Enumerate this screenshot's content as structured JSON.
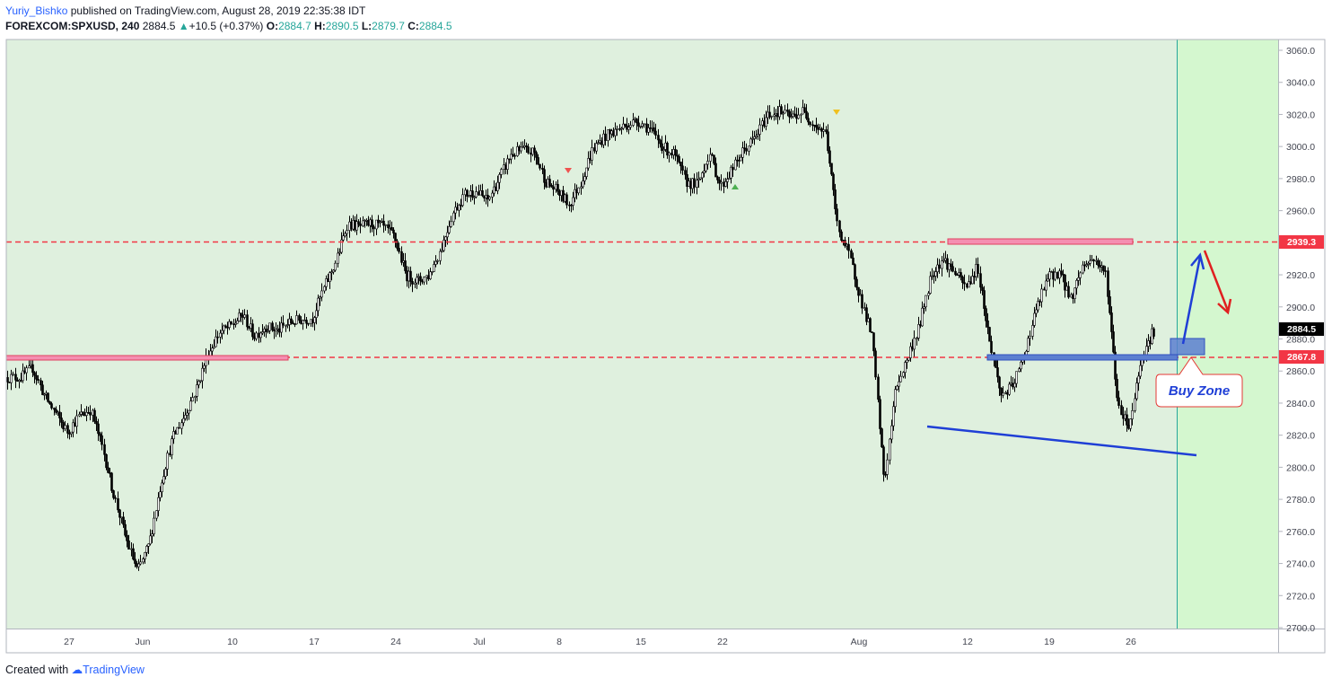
{
  "header": {
    "author": "Yuriy_Bishko",
    "published_text": "published on TradingView.com, August 28, 2019 22:35:38 IDT",
    "symbol": "FOREXCOM:SPXUSD, 240",
    "last": "2884.5",
    "change": "+10.5 (+0.37%)",
    "o_label": "O:",
    "o": "2884.7",
    "h_label": "H:",
    "h": "2890.5",
    "l_label": "L:",
    "l": "2879.7",
    "c_label": "C:",
    "c": "2884.5"
  },
  "footer": {
    "created_with": "Created with",
    "brand": "TradingView"
  },
  "colors": {
    "bg_green": "#dff0de",
    "future_green": "#d4f7cf",
    "resistance_line": "#f23645",
    "zone_red": "#f48fb1",
    "zone_blue": "#5c7fd0",
    "support_line": "#1f3fd6",
    "arrow_up": "#1f3fd6",
    "arrow_down": "#e02020",
    "buy_text": "#1f3fd6",
    "callout_border": "#e53935"
  },
  "chart_data": {
    "type": "candlestick",
    "y_axis": {
      "min": 2700,
      "max": 3060,
      "ticks": [
        "3060.0",
        "3040.0",
        "3020.0",
        "3000.0",
        "2980.0",
        "2960.0",
        "2940.0",
        "2920.0",
        "2900.0",
        "2880.0",
        "2860.0",
        "2840.0",
        "2820.0",
        "2800.0",
        "2780.0",
        "2760.0",
        "2740.0",
        "2720.0",
        "2700.0"
      ],
      "tick_values": [
        3060,
        3040,
        3020,
        3000,
        2980,
        2960,
        2940,
        2920,
        2900,
        2880,
        2860,
        2840,
        2820,
        2800,
        2780,
        2760,
        2740,
        2720,
        2700
      ]
    },
    "x_axis": {
      "labels": [
        "27",
        "Jun",
        "10",
        "17",
        "24",
        "Jul",
        "8",
        "15",
        "22",
        "Aug",
        "12",
        "19",
        "26"
      ],
      "dates": [
        "2019-05-27",
        "2019-06-01",
        "2019-06-10",
        "2019-06-17",
        "2019-06-24",
        "2019-07-01",
        "2019-07-08",
        "2019-07-15",
        "2019-07-22",
        "2019-08-01",
        "2019-08-12",
        "2019-08-19",
        "2019-08-26"
      ]
    },
    "levels": [
      {
        "value": 2939.3,
        "label": "2939.3"
      },
      {
        "value": 2867.8,
        "label": "2867.8"
      }
    ],
    "last_price": {
      "value": 2884.5,
      "label": "2884.5"
    },
    "annotations": {
      "buy_zone_label": "Buy Zone"
    },
    "price_path": [
      {
        "date": "2019-05-23",
        "price": 2856
      },
      {
        "date": "2019-05-24",
        "price": 2862
      },
      {
        "date": "2019-05-25",
        "price": 2845
      },
      {
        "date": "2019-05-27",
        "price": 2822
      },
      {
        "date": "2019-05-28",
        "price": 2832
      },
      {
        "date": "2019-05-29",
        "price": 2836
      },
      {
        "date": "2019-05-30",
        "price": 2812
      },
      {
        "date": "2019-05-31",
        "price": 2782
      },
      {
        "date": "2019-06-01",
        "price": 2756
      },
      {
        "date": "2019-06-02",
        "price": 2735
      },
      {
        "date": "2019-06-03",
        "price": 2752
      },
      {
        "date": "2019-06-04",
        "price": 2790
      },
      {
        "date": "2019-06-05",
        "price": 2818
      },
      {
        "date": "2019-06-06",
        "price": 2832
      },
      {
        "date": "2019-06-07",
        "price": 2848
      },
      {
        "date": "2019-06-08",
        "price": 2870
      },
      {
        "date": "2019-06-09",
        "price": 2884
      },
      {
        "date": "2019-06-10",
        "price": 2888
      },
      {
        "date": "2019-06-11",
        "price": 2895
      },
      {
        "date": "2019-06-12",
        "price": 2882
      },
      {
        "date": "2019-06-13",
        "price": 2888
      },
      {
        "date": "2019-06-14",
        "price": 2885
      },
      {
        "date": "2019-06-15",
        "price": 2890
      },
      {
        "date": "2019-06-16",
        "price": 2892
      },
      {
        "date": "2019-06-17",
        "price": 2893
      },
      {
        "date": "2019-06-18",
        "price": 2912
      },
      {
        "date": "2019-06-19",
        "price": 2928
      },
      {
        "date": "2019-06-20",
        "price": 2952
      },
      {
        "date": "2019-06-21",
        "price": 2950
      },
      {
        "date": "2019-06-22",
        "price": 2952
      },
      {
        "date": "2019-06-23",
        "price": 2950
      },
      {
        "date": "2019-06-24",
        "price": 2944
      },
      {
        "date": "2019-06-25",
        "price": 2920
      },
      {
        "date": "2019-06-26",
        "price": 2916
      },
      {
        "date": "2019-06-27",
        "price": 2920
      },
      {
        "date": "2019-06-28",
        "price": 2936
      },
      {
        "date": "2019-06-29",
        "price": 2958
      },
      {
        "date": "2019-06-30",
        "price": 2970
      },
      {
        "date": "2019-07-01",
        "price": 2972
      },
      {
        "date": "2019-07-02",
        "price": 2966
      },
      {
        "date": "2019-07-03",
        "price": 2980
      },
      {
        "date": "2019-07-04",
        "price": 2995
      },
      {
        "date": "2019-07-05",
        "price": 2998
      },
      {
        "date": "2019-07-06",
        "price": 2996
      },
      {
        "date": "2019-07-07",
        "price": 2978
      },
      {
        "date": "2019-07-08",
        "price": 2972
      },
      {
        "date": "2019-07-09",
        "price": 2964
      },
      {
        "date": "2019-07-10",
        "price": 2978
      },
      {
        "date": "2019-07-11",
        "price": 2998
      },
      {
        "date": "2019-07-12",
        "price": 3006
      },
      {
        "date": "2019-07-13",
        "price": 3010
      },
      {
        "date": "2019-07-14",
        "price": 3014
      },
      {
        "date": "2019-07-15",
        "price": 3016
      },
      {
        "date": "2019-07-16",
        "price": 3010
      },
      {
        "date": "2019-07-17",
        "price": 3000
      },
      {
        "date": "2019-07-18",
        "price": 2995
      },
      {
        "date": "2019-07-19",
        "price": 2978
      },
      {
        "date": "2019-07-20",
        "price": 2976
      },
      {
        "date": "2019-07-21",
        "price": 2996
      },
      {
        "date": "2019-07-22",
        "price": 2975
      },
      {
        "date": "2019-07-23",
        "price": 2986
      },
      {
        "date": "2019-07-24",
        "price": 2998
      },
      {
        "date": "2019-07-25",
        "price": 3006
      },
      {
        "date": "2019-07-26",
        "price": 3020
      },
      {
        "date": "2019-07-27",
        "price": 3022
      },
      {
        "date": "2019-07-28",
        "price": 3018
      },
      {
        "date": "2019-07-29",
        "price": 3022
      },
      {
        "date": "2019-07-30",
        "price": 3014
      },
      {
        "date": "2019-07-31",
        "price": 3008
      },
      {
        "date": "2019-08-01",
        "price": 2950
      },
      {
        "date": "2019-08-02",
        "price": 2932
      },
      {
        "date": "2019-08-03",
        "price": 2905
      },
      {
        "date": "2019-08-04",
        "price": 2880
      },
      {
        "date": "2019-08-05",
        "price": 2790
      },
      {
        "date": "2019-08-06",
        "price": 2850
      },
      {
        "date": "2019-08-07",
        "price": 2868
      },
      {
        "date": "2019-08-08",
        "price": 2888
      },
      {
        "date": "2019-08-09",
        "price": 2920
      },
      {
        "date": "2019-08-10",
        "price": 2930
      },
      {
        "date": "2019-08-11",
        "price": 2922
      },
      {
        "date": "2019-08-12",
        "price": 2912
      },
      {
        "date": "2019-08-13",
        "price": 2925
      },
      {
        "date": "2019-08-14",
        "price": 2880
      },
      {
        "date": "2019-08-15",
        "price": 2845
      },
      {
        "date": "2019-08-16",
        "price": 2850
      },
      {
        "date": "2019-08-17",
        "price": 2870
      },
      {
        "date": "2019-08-18",
        "price": 2898
      },
      {
        "date": "2019-08-19",
        "price": 2918
      },
      {
        "date": "2019-08-20",
        "price": 2922
      },
      {
        "date": "2019-08-21",
        "price": 2905
      },
      {
        "date": "2019-08-22",
        "price": 2926
      },
      {
        "date": "2019-08-23",
        "price": 2930
      },
      {
        "date": "2019-08-24",
        "price": 2920
      },
      {
        "date": "2019-08-25",
        "price": 2840
      },
      {
        "date": "2019-08-26",
        "price": 2825
      },
      {
        "date": "2019-08-27",
        "price": 2868
      },
      {
        "date": "2019-08-28",
        "price": 2884.5
      }
    ]
  }
}
